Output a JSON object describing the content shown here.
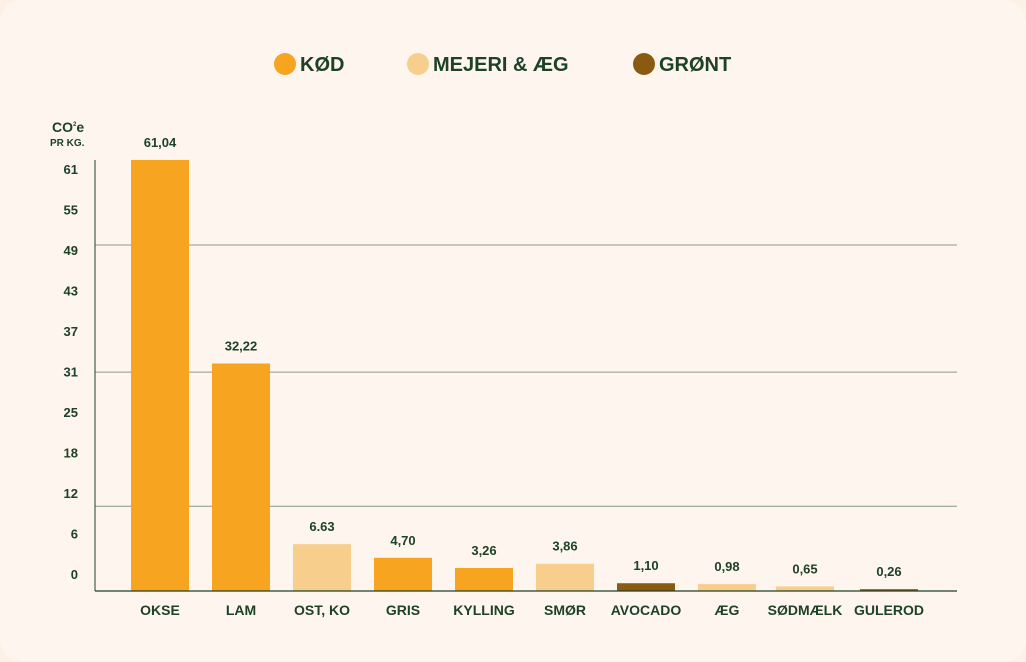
{
  "legend": [
    {
      "label": "KØD",
      "color": "#f7a520"
    },
    {
      "label": "MEJERI & ÆG",
      "color": "#f8ce8c"
    },
    {
      "label": "GRØNT",
      "color": "#8a5a10"
    }
  ],
  "axis": {
    "unit_main": "CO",
    "unit_sub": "2",
    "unit_suffix": "e",
    "unit_line2": "PR KG."
  },
  "chart_data": {
    "type": "bar",
    "categories": [
      "OKSE",
      "LAM",
      "OST, KO",
      "GRIS",
      "KYLLING",
      "SMØR",
      "AVOCADO",
      "ÆG",
      "SØDMÆLK",
      "GULEROD"
    ],
    "values": [
      61.04,
      32.22,
      6.63,
      4.7,
      3.26,
      3.86,
      1.1,
      0.98,
      0.65,
      0.26
    ],
    "value_labels": [
      "61,04",
      "32,22",
      "6.63",
      "4,70",
      "3,26",
      "3,86",
      "1,10",
      "0,98",
      "0,65",
      "0,26"
    ],
    "groups": [
      "KØD",
      "KØD",
      "MEJERI & ÆG",
      "KØD",
      "KØD",
      "MEJERI & ÆG",
      "GRØNT",
      "MEJERI & ÆG",
      "MEJERI & ÆG",
      "GRØNT"
    ],
    "yticks": [
      "0",
      "6",
      "12",
      "18",
      "25",
      "31",
      "37",
      "43",
      "49",
      "55",
      "61"
    ],
    "ylim": [
      0,
      61.04
    ],
    "grid_lines_at": [
      12,
      31,
      49
    ],
    "legend_position": "top-center"
  }
}
